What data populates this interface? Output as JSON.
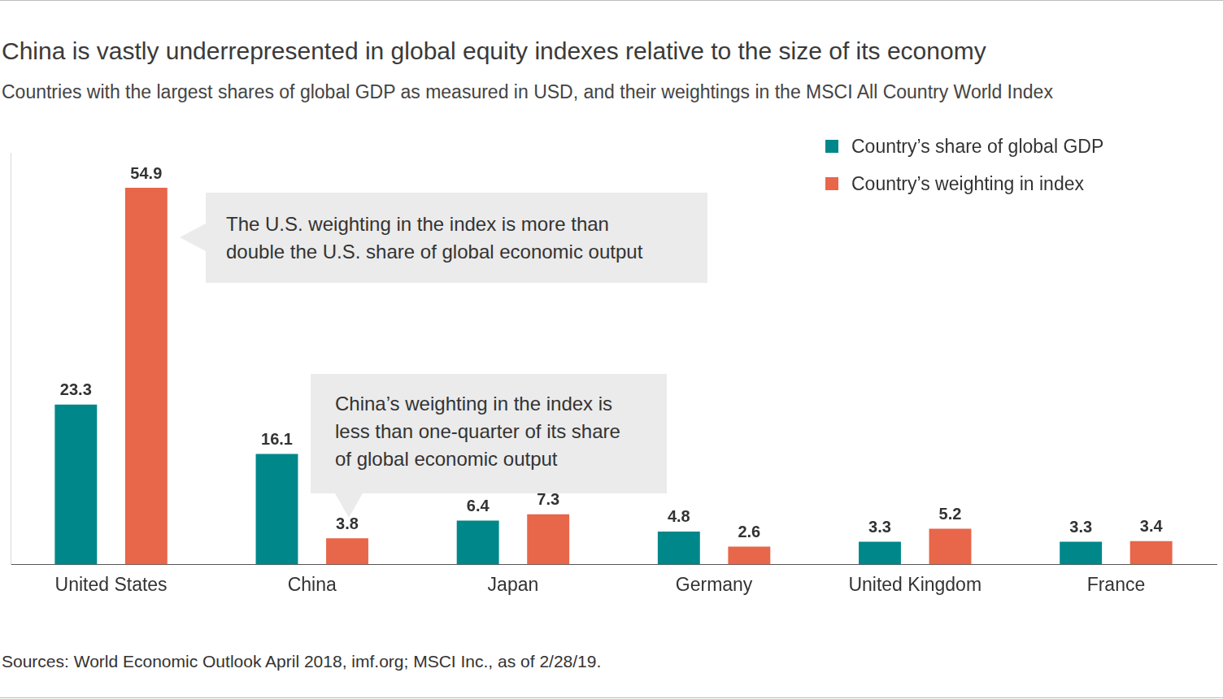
{
  "chart_data": {
    "type": "bar",
    "title": "China is vastly underrepresented in global equity indexes relative to the size of its economy",
    "subtitle": "Countries with the largest shares of global GDP as measured in USD, and their weightings in the MSCI All Country World Index",
    "categories": [
      "United States",
      "China",
      "Japan",
      "Germany",
      "United Kingdom",
      "France"
    ],
    "series": [
      {
        "name": "Country’s share of global GDP",
        "color": "#00878a",
        "values": [
          23.3,
          16.1,
          6.4,
          4.8,
          3.3,
          3.3
        ]
      },
      {
        "name": "Country’s weighting in index",
        "color": "#e8664a",
        "values": [
          54.9,
          3.8,
          7.3,
          2.6,
          5.2,
          3.4
        ]
      }
    ],
    "annotations": [
      "The U.S. weighting in the index is more than\ndouble the U.S. share of global economic output",
      "China’s weighting in the index is\nless than one-quarter of its share\nof global economic output"
    ],
    "source": "Sources: World Economic Outlook April 2018, imf.org; MSCI Inc., as of 2/28/19.",
    "ylim": [
      0,
      60
    ],
    "grid": false,
    "legend": "top-right",
    "data_labels": true,
    "tick_labels": "x"
  }
}
